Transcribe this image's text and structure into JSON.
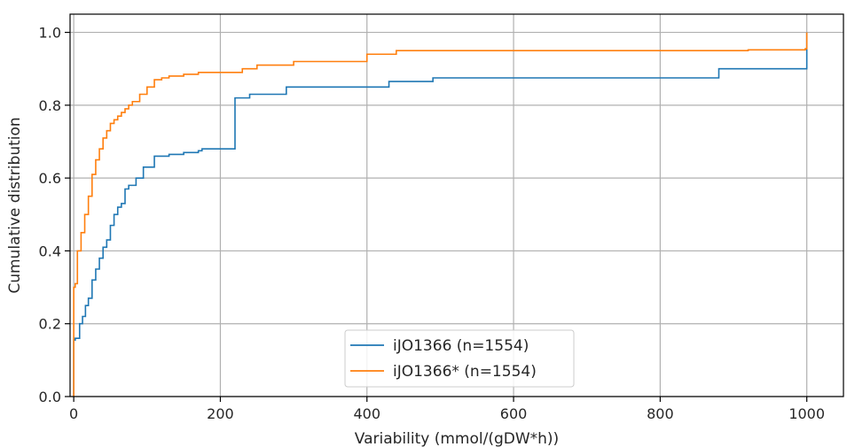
{
  "chart_data": {
    "type": "line",
    "title": "",
    "xlabel": "Variability (mmol/(gDW*h))",
    "ylabel": "Cumulative distribution",
    "xlim": [
      -5,
      1050
    ],
    "ylim": [
      0,
      1.05
    ],
    "xticks": [
      0,
      200,
      400,
      600,
      800,
      1000
    ],
    "yticks": [
      0.0,
      0.2,
      0.4,
      0.6,
      0.8,
      1.0
    ],
    "xtick_labels": [
      "0",
      "200",
      "400",
      "600",
      "800",
      "1000"
    ],
    "ytick_labels": [
      "0.0",
      "0.2",
      "0.4",
      "0.6",
      "0.8",
      "1.0"
    ],
    "grid": true,
    "legend_position": "bottom-center",
    "series": [
      {
        "name": "iJO1366 (n=1554)",
        "color": "#1f77b4",
        "drawstyle": "steps-post",
        "x": [
          0,
          0,
          2,
          8,
          12,
          16,
          20,
          25,
          30,
          35,
          40,
          45,
          50,
          55,
          60,
          65,
          70,
          75,
          85,
          95,
          110,
          130,
          150,
          170,
          175,
          218,
          220,
          240,
          290,
          350,
          430,
          490,
          880,
          998,
          1000
        ],
        "y": [
          0,
          0.155,
          0.16,
          0.2,
          0.22,
          0.25,
          0.27,
          0.32,
          0.35,
          0.38,
          0.41,
          0.43,
          0.47,
          0.5,
          0.52,
          0.53,
          0.57,
          0.58,
          0.6,
          0.63,
          0.66,
          0.665,
          0.67,
          0.675,
          0.68,
          0.68,
          0.82,
          0.83,
          0.85,
          0.85,
          0.865,
          0.875,
          0.9,
          0.9,
          1.0
        ]
      },
      {
        "name": "iJO1366* (n=1554)",
        "color": "#ff7f0e",
        "drawstyle": "steps-post",
        "x": [
          0,
          0,
          2,
          5,
          10,
          15,
          20,
          25,
          30,
          35,
          40,
          45,
          50,
          55,
          60,
          65,
          70,
          75,
          80,
          90,
          100,
          110,
          120,
          130,
          150,
          170,
          210,
          230,
          250,
          300,
          400,
          440,
          500,
          800,
          920,
          998,
          1000
        ],
        "y": [
          0,
          0.3,
          0.31,
          0.4,
          0.45,
          0.5,
          0.55,
          0.61,
          0.65,
          0.68,
          0.71,
          0.73,
          0.75,
          0.76,
          0.77,
          0.78,
          0.79,
          0.8,
          0.81,
          0.83,
          0.85,
          0.87,
          0.875,
          0.88,
          0.885,
          0.89,
          0.89,
          0.9,
          0.91,
          0.92,
          0.94,
          0.95,
          0.95,
          0.95,
          0.952,
          0.955,
          1.0
        ]
      }
    ]
  }
}
